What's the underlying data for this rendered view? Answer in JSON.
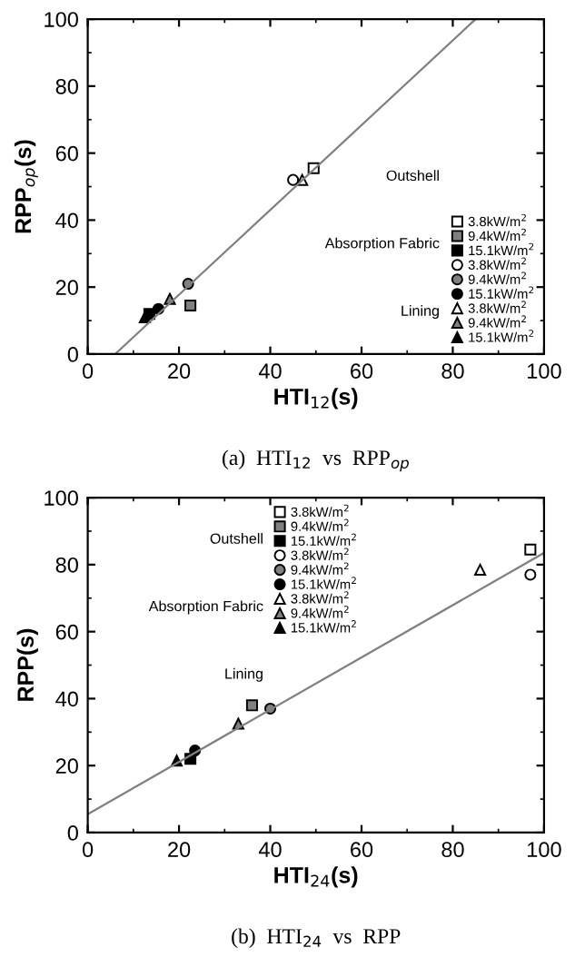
{
  "chart_data": [
    {
      "type": "scatter",
      "xlabel": "HTI$_{12}$(s)",
      "ylabel": "RPP$_{op}$(s)",
      "xlim": [
        0,
        100
      ],
      "ylim": [
        0,
        100
      ],
      "xticks": [
        0,
        20,
        40,
        60,
        80,
        100
      ],
      "yticks": [
        0,
        20,
        40,
        60,
        80,
        100
      ],
      "grid": false,
      "legend": "lower right",
      "annotations": [
        "Outshell",
        "Absorption Fabric",
        "Lining",
        "(a)  HTI$_{12}$  vs  RPP$_{op}$"
      ],
      "series": [
        {
          "name": "3.8kW/m$^{2}$",
          "color": "#ffffff",
          "marker": "square",
          "x": [
            49.5
          ],
          "values": [
            55.5
          ]
        },
        {
          "name": "9.4kW/m$^{2}$",
          "color": "#808080",
          "marker": "square",
          "x": [
            22.5
          ],
          "values": [
            14.5
          ]
        },
        {
          "name": "15.1kW/m$^{2}$",
          "color": "#000000",
          "marker": "square",
          "x": [
            13.5
          ],
          "values": [
            12
          ]
        },
        {
          "name": "3.8kW/m$^{2}$",
          "color": "#ffffff",
          "marker": "circle",
          "x": [
            45
          ],
          "values": [
            52
          ]
        },
        {
          "name": "9.4kW/m$^{2}$",
          "color": "#808080",
          "marker": "circle",
          "x": [
            22
          ],
          "values": [
            21
          ]
        },
        {
          "name": "15.1kW/m$^{2}$",
          "color": "#000000",
          "marker": "circle",
          "x": [
            15.5
          ],
          "values": [
            13.5
          ]
        },
        {
          "name": "3.8kW/m$^{2}$",
          "color": "#ffffff",
          "marker": "triangle",
          "x": [
            47
          ],
          "values": [
            52
          ]
        },
        {
          "name": "9.4kW/m$^{2}$",
          "color": "#808080",
          "marker": "triangle",
          "x": [
            18
          ],
          "values": [
            16.5
          ]
        },
        {
          "name": "15.1kW/m$^{2}$",
          "color": "#000000",
          "marker": "triangle",
          "x": [
            12.5
          ],
          "values": [
            11
          ]
        },
        {
          "type": "line",
          "color": "#808080",
          "marker": "none",
          "x": [
            6,
            85
          ],
          "values": [
            0,
            100
          ]
        }
      ]
    },
    {
      "type": "scatter",
      "xlabel": "HTI$_{24}$(s)",
      "ylabel": "RPP(s)",
      "xlim": [
        0,
        100
      ],
      "ylim": [
        0,
        100
      ],
      "xticks": [
        0,
        20,
        40,
        60,
        80,
        100
      ],
      "yticks": [
        0,
        20,
        40,
        60,
        80,
        100
      ],
      "grid": false,
      "legend": "top",
      "annotations": [
        "Outshell",
        "Absorption Fabric",
        "Lining",
        "(b)  HTI$_{24}$  vs  RPP"
      ],
      "series": [
        {
          "name": "3.8kW/m$^{2}$",
          "color": "#ffffff",
          "marker": "square",
          "x": [
            97
          ],
          "values": [
            84.5
          ]
        },
        {
          "name": "9.4kW/m$^{2}$",
          "color": "#808080",
          "marker": "square",
          "x": [
            36
          ],
          "values": [
            38
          ]
        },
        {
          "name": "15.1kW/m$^{2}$",
          "color": "#000000",
          "marker": "square",
          "x": [
            22.5
          ],
          "values": [
            22
          ]
        },
        {
          "name": "3.8kW/m$^{2}$",
          "color": "#ffffff",
          "marker": "circle",
          "x": [
            97
          ],
          "values": [
            77
          ]
        },
        {
          "name": "9.4kW/m$^{2}$",
          "color": "#808080",
          "marker": "circle",
          "x": [
            40
          ],
          "values": [
            37
          ]
        },
        {
          "name": "15.1kW/m$^{2}$",
          "color": "#000000",
          "marker": "circle",
          "x": [
            23.5
          ],
          "values": [
            24.5
          ]
        },
        {
          "name": "3.8kW/m$^{2}$",
          "color": "#ffffff",
          "marker": "triangle",
          "x": [
            86
          ],
          "values": [
            78.5
          ]
        },
        {
          "name": "9.4kW/m$^{2}$",
          "color": "#808080",
          "marker": "triangle",
          "x": [
            33
          ],
          "values": [
            32.5
          ]
        },
        {
          "name": "15.1kW/m$^{2}$",
          "color": "#000000",
          "marker": "triangle",
          "x": [
            19.5
          ],
          "values": [
            21.5
          ]
        },
        {
          "type": "line",
          "color": "#808080",
          "marker": "none",
          "x": [
            0,
            100
          ],
          "values": [
            5.5,
            83.5
          ]
        }
      ]
    }
  ]
}
